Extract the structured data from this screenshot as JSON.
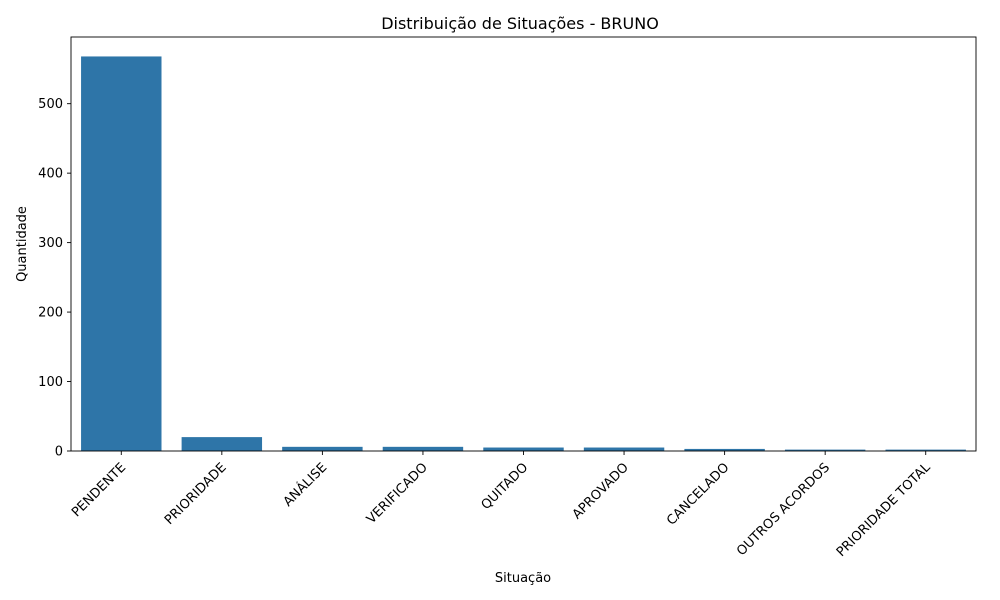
{
  "chart_data": {
    "type": "bar",
    "title": "Distribuição de Situações - BRUNO",
    "xlabel": "Situação",
    "ylabel": "Quantidade",
    "categories": [
      "PENDENTE",
      "PRIORIDADE",
      "ANÁLISE",
      "VERIFICADO",
      "QUITADO",
      "APROVADO",
      "CANCELADO",
      "OUTROS ACORDOS",
      "PRIORIDADE TOTAL"
    ],
    "values": [
      568,
      20,
      6,
      6,
      5,
      5,
      3,
      2,
      2
    ],
    "ylim": [
      0,
      596
    ],
    "yticks": [
      0,
      100,
      200,
      300,
      400,
      500
    ],
    "grid": false,
    "bar_color": "#2e75a8"
  }
}
